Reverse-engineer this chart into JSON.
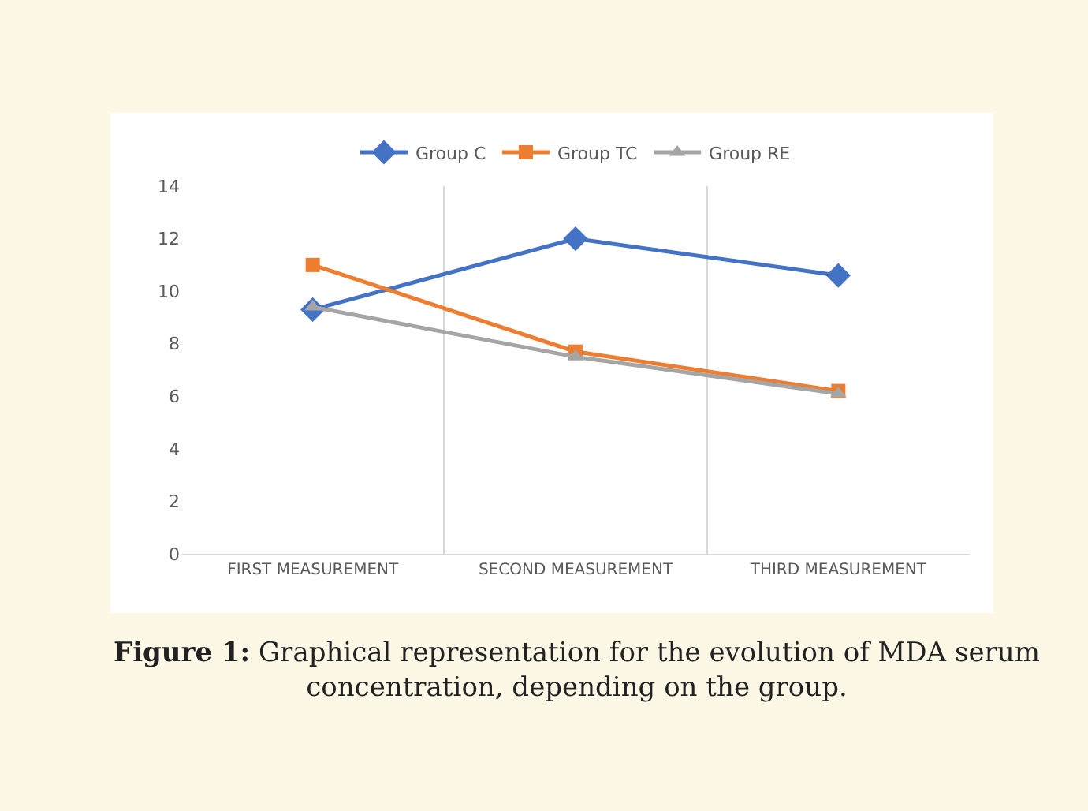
{
  "chart_data": {
    "type": "line",
    "categories": [
      "FIRST MEASUREMENT",
      "SECOND MEASUREMENT",
      "THIRD MEASUREMENT"
    ],
    "series": [
      {
        "name": "Group C",
        "color": "#4472c4",
        "marker": "diamond",
        "values": [
          9.3,
          12.0,
          10.6
        ]
      },
      {
        "name": "Group TC",
        "color": "#ed7d31",
        "marker": "square",
        "values": [
          11.0,
          7.7,
          6.2
        ]
      },
      {
        "name": "Group RE",
        "color": "#a5a5a5",
        "marker": "triangle",
        "values": [
          9.4,
          7.5,
          6.1
        ]
      }
    ],
    "ylim": [
      0,
      14
    ],
    "yticks": [
      0,
      2,
      4,
      6,
      8,
      10,
      12,
      14
    ],
    "grid": "x",
    "legend": "top",
    "line_style": "solid",
    "annotations": [
      "Figure 1: Graphical representation for the evolution of MDA serum concentration, depending on the group."
    ]
  }
}
